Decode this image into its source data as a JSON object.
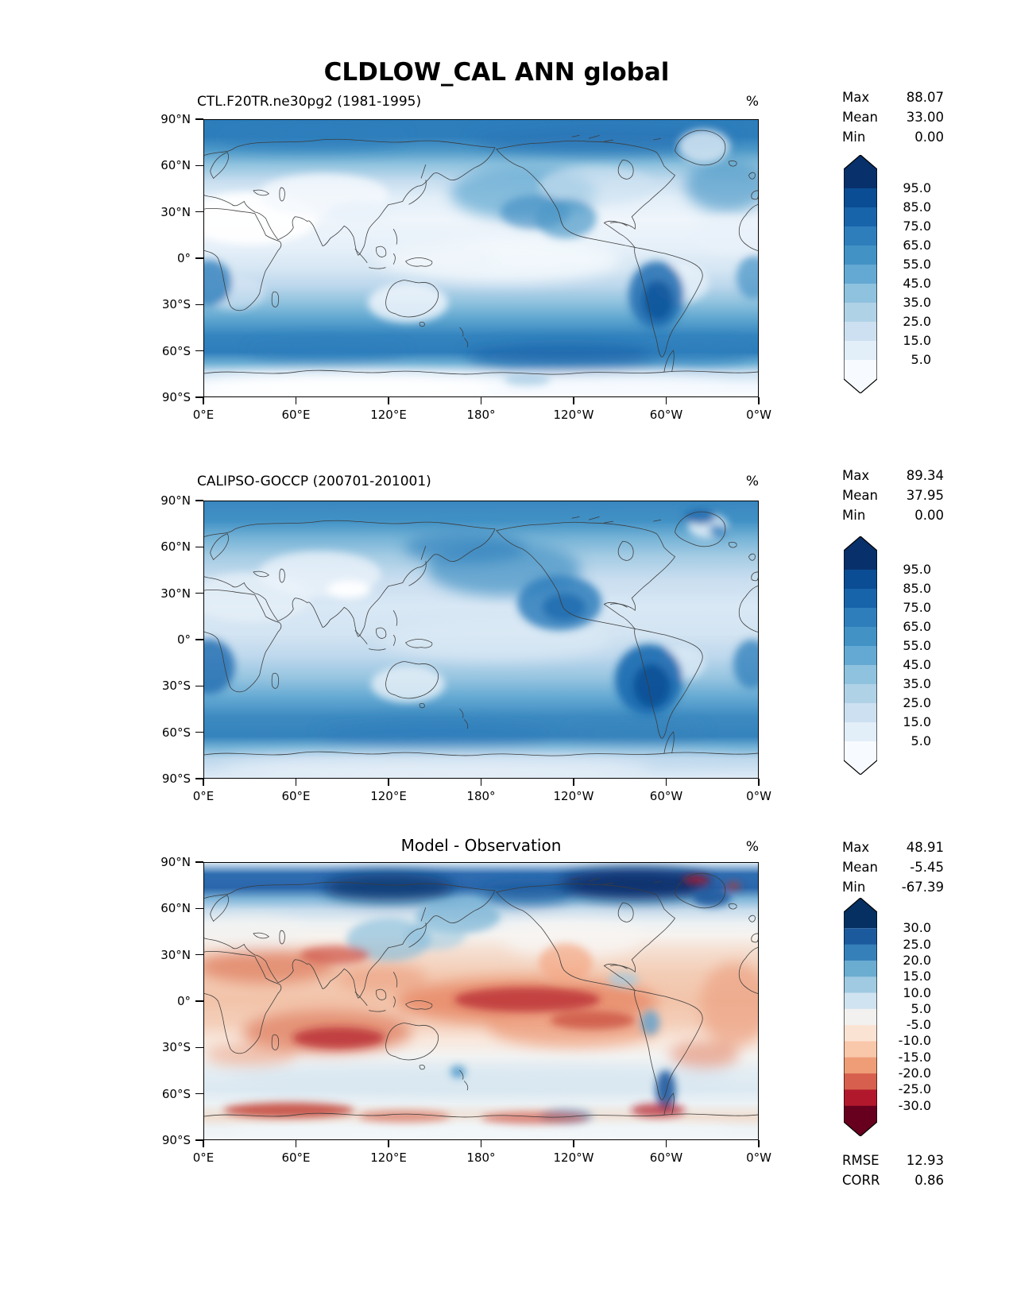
{
  "page_title": "CLDLOW_CAL ANN global",
  "axes": {
    "lat": [
      "90°N",
      "60°N",
      "30°N",
      "0°",
      "30°S",
      "60°S",
      "90°S"
    ],
    "lon": [
      "0°E",
      "60°E",
      "120°E",
      "180°",
      "120°W",
      "60°W",
      "0°W"
    ]
  },
  "panels": [
    {
      "id": "model",
      "title": "CTL.F20TR.ne30pg2 (1981-1995)",
      "units": "%",
      "stats": [
        {
          "label": "Max",
          "value": "88.07"
        },
        {
          "label": "Mean",
          "value": "33.00"
        },
        {
          "label": "Min",
          "value": "0.00"
        }
      ],
      "colorbar": {
        "labels": [
          "95.0",
          "85.0",
          "75.0",
          "65.0",
          "55.0",
          "45.0",
          "35.0",
          "25.0",
          "15.0",
          "5.0"
        ],
        "colors": [
          "#08306b",
          "#0a4d94",
          "#1864aa",
          "#2f7ebc",
          "#4292c6",
          "#64a9d3",
          "#8fc2de",
          "#b0d2e7",
          "#cde0f1",
          "#e2eef8",
          "#f7fbff"
        ]
      }
    },
    {
      "id": "observation",
      "title": "CALIPSO-GOCCP (200701-201001)",
      "units": "%",
      "stats": [
        {
          "label": "Max",
          "value": "89.34"
        },
        {
          "label": "Mean",
          "value": "37.95"
        },
        {
          "label": "Min",
          "value": "0.00"
        }
      ],
      "colorbar": {
        "labels": [
          "95.0",
          "85.0",
          "75.0",
          "65.0",
          "55.0",
          "45.0",
          "35.0",
          "25.0",
          "15.0",
          "5.0"
        ],
        "colors": [
          "#08306b",
          "#0a4d94",
          "#1864aa",
          "#2f7ebc",
          "#4292c6",
          "#64a9d3",
          "#8fc2de",
          "#b0d2e7",
          "#cde0f1",
          "#e2eef8",
          "#f7fbff"
        ]
      }
    },
    {
      "id": "difference",
      "title": "Model - Observation",
      "units": "%",
      "stats": [
        {
          "label": "Max",
          "value": "48.91"
        },
        {
          "label": "Mean",
          "value": "-5.45"
        },
        {
          "label": "Min",
          "value": "-67.39"
        }
      ],
      "colorbar": {
        "labels": [
          "30.0",
          "25.0",
          "20.0",
          "15.0",
          "10.0",
          "5.0",
          "-5.0",
          "-10.0",
          "-15.0",
          "-20.0",
          "-25.0",
          "-30.0"
        ],
        "colors": [
          "#053061",
          "#1c5a9e",
          "#3580b9",
          "#6bacd1",
          "#9fcae1",
          "#d0e3f0",
          "#f2f1ef",
          "#fbe3d4",
          "#f9c7a9",
          "#ee9d77",
          "#d6604d",
          "#b2182b",
          "#67001f"
        ]
      },
      "extra_stats": [
        {
          "label": "RMSE",
          "value": "12.93"
        },
        {
          "label": "CORR",
          "value": "0.86"
        }
      ]
    }
  ],
  "chart_data": {
    "type": "map-contour-set",
    "suptitle": "CLDLOW_CAL ANN global",
    "variable": "CLDLOW_CAL",
    "season": "ANN",
    "region": "global",
    "units": "%",
    "projection": "equirectangular, longitude 0°E to 0°W (360°), latitude 90°N to 90°S",
    "lat_ticks": [
      "90°N",
      "60°N",
      "30°N",
      "0°",
      "30°S",
      "60°S",
      "90°S"
    ],
    "lon_ticks": [
      "0°E",
      "60°E",
      "120°E",
      "180°",
      "120°W",
      "60°W",
      "0°W"
    ],
    "maps": [
      {
        "name": "model",
        "title": "CTL.F20TR.ne30pg2 (1981-1995)",
        "colormap": "Blues (discrete, dark = high cloud fraction)",
        "levels": [
          5,
          15,
          25,
          35,
          45,
          55,
          65,
          75,
          85,
          95
        ],
        "stats": {
          "max": 88.07,
          "mean": 33.0,
          "min": 0.0
        }
      },
      {
        "name": "observation",
        "title": "CALIPSO-GOCCP (200701-201001)",
        "colormap": "Blues (discrete, dark = high cloud fraction)",
        "levels": [
          5,
          15,
          25,
          35,
          45,
          55,
          65,
          75,
          85,
          95
        ],
        "stats": {
          "max": 89.34,
          "mean": 37.95,
          "min": 0.0
        }
      },
      {
        "name": "difference",
        "title": "Model - Observation",
        "colormap": "RdBu (discrete, blue = positive, red = negative)",
        "levels": [
          -30,
          -25,
          -20,
          -15,
          -10,
          -5,
          5,
          10,
          15,
          20,
          25,
          30
        ],
        "stats": {
          "max": 48.91,
          "mean": -5.45,
          "min": -67.39,
          "rmse": 12.93,
          "corr": 0.86
        }
      }
    ]
  }
}
